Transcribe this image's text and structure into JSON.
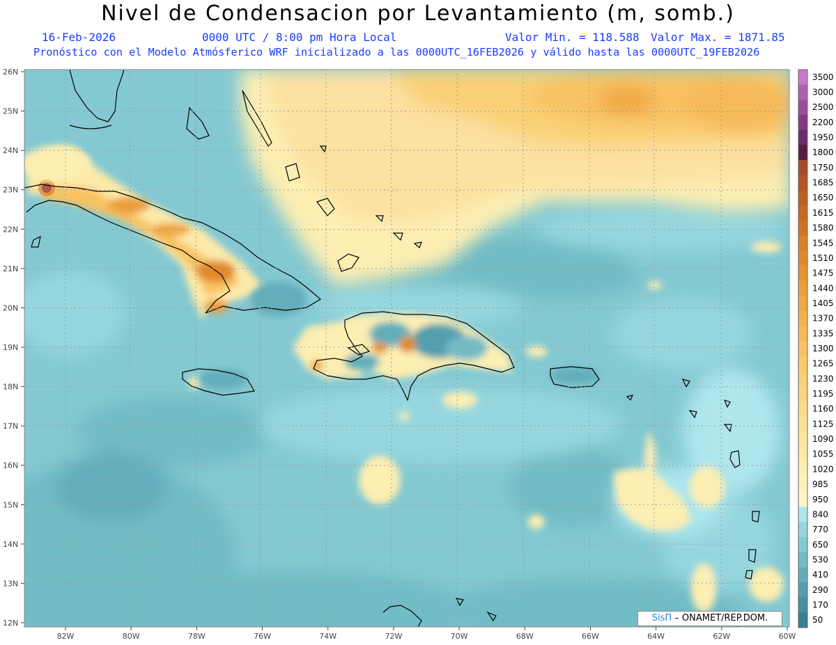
{
  "header": {
    "title": "Nivel de Condensacion por Levantamiento (m, somb.)",
    "date": "16-Feb-2026",
    "time": "0000 UTC / 8:00 pm Hora Local",
    "min_label": "Valor Min. = 118.588",
    "max_label": "Valor Max. = 1871.85",
    "forecast_line": "Pronóstico con el Modelo Atmósferico WRF inicializado a las 0000UTC_16FEB2026 y válido hasta las  0000UTC_19FEB2026"
  },
  "axes": {
    "lat_labels": [
      "26N",
      "25N",
      "24N",
      "23N",
      "22N",
      "21N",
      "20N",
      "19N",
      "18N",
      "17N",
      "16N",
      "15N",
      "14N",
      "13N",
      "12N"
    ],
    "lon_labels": [
      "82W",
      "80W",
      "78W",
      "76W",
      "74W",
      "72W",
      "70W",
      "68W",
      "66W",
      "64W",
      "62W",
      "60W"
    ]
  },
  "colorbar": {
    "levels": [
      "3500",
      "3000",
      "2500",
      "2200",
      "1950",
      "1800",
      "1750",
      "1685",
      "1650",
      "1615",
      "1580",
      "1545",
      "1510",
      "1475",
      "1440",
      "1405",
      "1370",
      "1335",
      "1300",
      "1265",
      "1230",
      "1195",
      "1160",
      "1125",
      "1090",
      "1055",
      "1020",
      "985",
      "950",
      "840",
      "770",
      "650",
      "530",
      "410",
      "290",
      "170",
      "50"
    ],
    "colors": [
      "#c77ac8",
      "#b060b0",
      "#9a4c9a",
      "#843a84",
      "#6e2a6e",
      "#5a1a46",
      "#a84a2a",
      "#b25528",
      "#bc5f26",
      "#c66a24",
      "#d07422",
      "#d88026",
      "#e08a2c",
      "#e69432",
      "#ec9e3a",
      "#f0a844",
      "#f4b24e",
      "#f6ba58",
      "#f8c262",
      "#f9c96c",
      "#fad076",
      "#fbd680",
      "#fcdc8a",
      "#fde194",
      "#fde69e",
      "#fdeaa8",
      "#fdeeb2",
      "#fef2bc",
      "#fef6c6",
      "#aee6ec",
      "#96d7df",
      "#84c9d2",
      "#72bcc6",
      "#62aebb",
      "#539faf",
      "#4590a2",
      "#367f94"
    ]
  },
  "credit": {
    "brand": "SisΠ",
    "text": "– ONAMET/REP.DOM."
  },
  "colors": {
    "subtitle": "#1a3cff",
    "ocean": "#84c9d2",
    "coast": "#000000"
  }
}
